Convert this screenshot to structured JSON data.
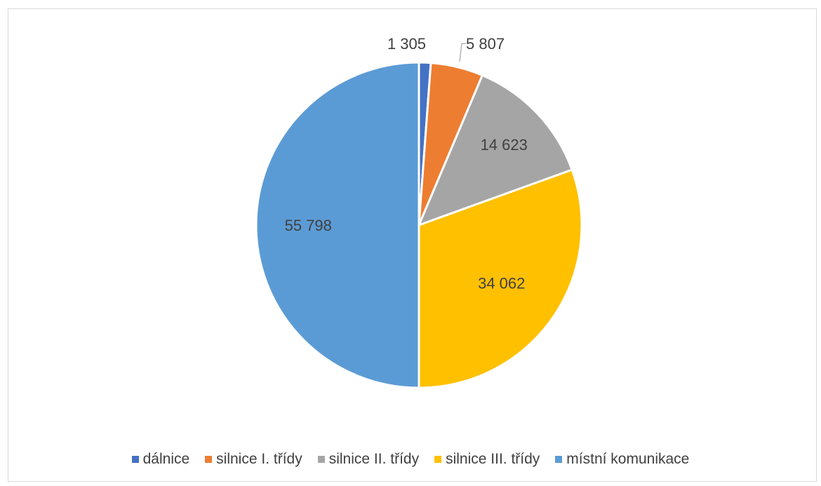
{
  "chart_data": {
    "type": "pie",
    "title": "",
    "categories": [
      "dálnice",
      "silnice I. třídy",
      "silnice II. třídy",
      "silnice III. třídy",
      "místní komunikace"
    ],
    "values": [
      1305,
      5807,
      14623,
      34062,
      55798
    ],
    "value_labels": [
      "1 305",
      "5 807",
      "14 623",
      "34 062",
      "55 798"
    ],
    "colors": [
      "#4472c4",
      "#ed7d31",
      "#a5a5a5",
      "#ffc000",
      "#5b9bd5"
    ],
    "start_angle_deg": 0,
    "direction": "clockwise",
    "legend_position": "bottom"
  },
  "legend": {
    "items": [
      {
        "label": "dálnice",
        "color": "#4472c4"
      },
      {
        "label": "silnice I. třídy",
        "color": "#ed7d31"
      },
      {
        "label": "silnice II. třídy",
        "color": "#a5a5a5"
      },
      {
        "label": "silnice III. třídy",
        "color": "#ffc000"
      },
      {
        "label": "místní komunikace",
        "color": "#5b9bd5"
      }
    ]
  }
}
